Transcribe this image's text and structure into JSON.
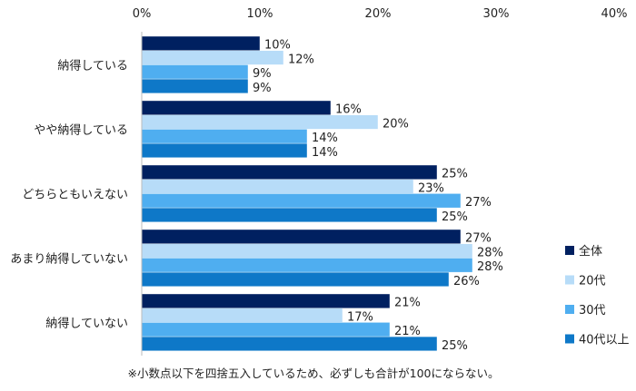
{
  "chart_data": {
    "type": "bar",
    "orientation": "horizontal",
    "categories": [
      "納得している",
      "やや納得している",
      "どちらともいえない",
      "あまり納得していない",
      "納得していない"
    ],
    "series": [
      {
        "name": "全体",
        "values": [
          10,
          16,
          25,
          27,
          21
        ],
        "color": "#002060"
      },
      {
        "name": "20代",
        "values": [
          12,
          20,
          23,
          28,
          17
        ],
        "color": "#B7DCF8"
      },
      {
        "name": "30代",
        "values": [
          9,
          14,
          27,
          28,
          21
        ],
        "color": "#4FAEF0"
      },
      {
        "name": "40代以上",
        "values": [
          9,
          14,
          25,
          26,
          25
        ],
        "color": "#0E78C8"
      }
    ],
    "xlim": [
      0,
      40
    ],
    "xticks": [
      "0%",
      "10%",
      "20%",
      "30%",
      "40%"
    ],
    "xaxis_position": "top",
    "grid": false,
    "legend": "right",
    "data_label_suffix": "%",
    "note": "※小数点以下を四捨五入しているため、必ずしも合計が100にならない。"
  }
}
